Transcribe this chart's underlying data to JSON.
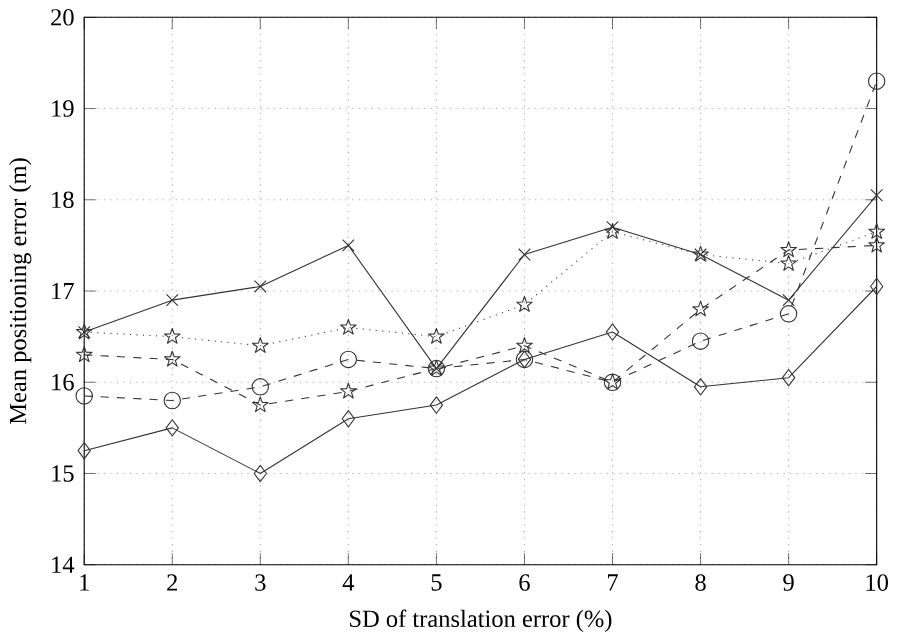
{
  "chart_data": {
    "type": "line",
    "xlabel": "SD of translation error (%)",
    "ylabel": "Mean positioning error (m)",
    "x": [
      1,
      2,
      3,
      4,
      5,
      6,
      7,
      8,
      9,
      10
    ],
    "series": [
      {
        "color": "#333333",
        "marker": "cross",
        "line_style": "solid",
        "values": [
          16.55,
          16.9,
          17.05,
          17.5,
          16.15,
          17.4,
          17.7,
          17.4,
          16.9,
          18.05
        ]
      },
      {
        "color": "#333333",
        "marker": "diamond",
        "line_style": "solid",
        "values": [
          15.25,
          15.5,
          15.0,
          15.6,
          15.75,
          16.25,
          16.55,
          15.95,
          16.05,
          17.05
        ]
      },
      {
        "color": "#333333",
        "marker": "circle",
        "line_style": "dashed",
        "values": [
          15.85,
          15.8,
          15.95,
          16.25,
          16.15,
          16.25,
          16.0,
          16.45,
          16.75,
          19.3
        ]
      },
      {
        "color": "#333333",
        "marker": "star",
        "line_style": "dotted",
        "values": [
          16.55,
          16.5,
          16.4,
          16.6,
          16.5,
          16.85,
          17.65,
          17.4,
          17.3,
          17.65
        ]
      },
      {
        "color": "#333333",
        "marker": "star",
        "line_style": "dashed",
        "values": [
          16.3,
          16.25,
          15.75,
          15.9,
          16.15,
          16.4,
          16.0,
          16.8,
          17.45,
          17.5
        ]
      }
    ],
    "xlim": [
      1,
      10
    ],
    "xticks": [
      1,
      2,
      3,
      4,
      5,
      6,
      7,
      8,
      9,
      10
    ],
    "ylim": [
      14,
      20
    ],
    "yticks": [
      14,
      15,
      16,
      17,
      18,
      19,
      20
    ],
    "grid": true
  }
}
